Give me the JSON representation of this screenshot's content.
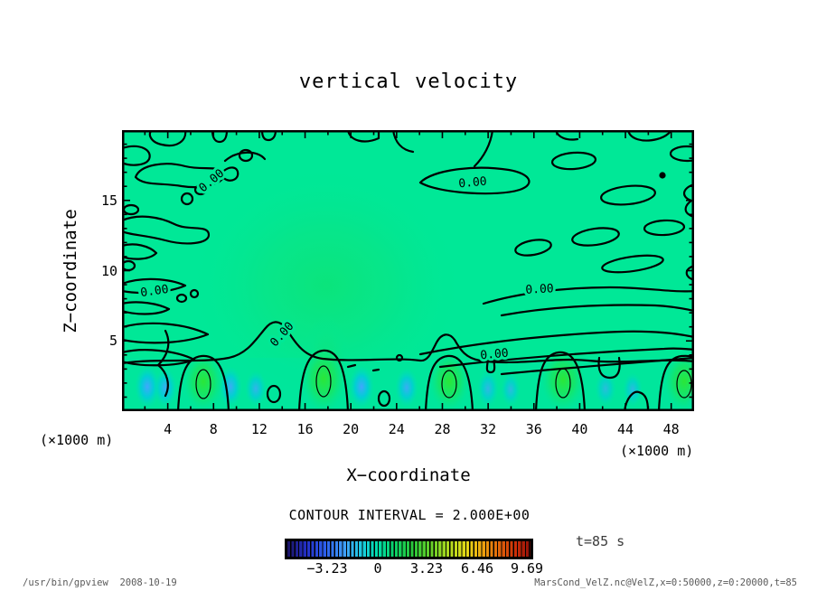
{
  "title": "vertical velocity",
  "axes": {
    "y_label": "Z−coordinate",
    "x_label": "X−coordinate",
    "y_ticks": [
      "15",
      "10",
      "5"
    ],
    "x_ticks": [
      "4",
      "8",
      "12",
      "16",
      "20",
      "24",
      "28",
      "32",
      "36",
      "40",
      "44",
      "48"
    ],
    "y_unit": "(×1000 m)",
    "x_unit": "(×1000 m)"
  },
  "contour_label": "0.00",
  "colorbar": {
    "caption": "CONTOUR INTERVAL = 2.000E+00",
    "tick_labels": [
      "−3.23",
      "0",
      "3.23",
      "6.46",
      "9.69"
    ]
  },
  "annotations": {
    "time": "t=85 s"
  },
  "footer": {
    "left": "/usr/bin/gpview  2008-10-19",
    "right": "MarsCond_VelZ.nc@VelZ,x=0:50000,z=0:20000,t=85"
  },
  "colors": {
    "field_background": "#00E897",
    "contour_line": "#000000",
    "updraft_core": "#2BE637",
    "downdraft_core": "#41A6FF"
  },
  "chart_data": {
    "type": "contour",
    "title": "vertical velocity",
    "xlabel": "X-coordinate",
    "ylabel": "Z-coordinate",
    "x_unit": "×1000 m",
    "y_unit": "×1000 m",
    "xlim": [
      0,
      50
    ],
    "ylim": [
      0,
      20
    ],
    "x_ticks": [
      4,
      8,
      12,
      16,
      20,
      24,
      28,
      32,
      36,
      40,
      44,
      48
    ],
    "y_ticks": [
      5,
      10,
      15
    ],
    "x_minor_step": 2,
    "y_minor_step": 1,
    "contour_interval": 2.0,
    "labeled_contour_value": 0.0,
    "colorbar_ticks": [
      -3.23,
      0,
      3.23,
      6.46,
      9.69
    ],
    "colorbar_range": [
      -6.0,
      10.3
    ],
    "time_label": "t=85 s",
    "field_summary": {
      "background_value": 0.0,
      "convective_layer_top_km": 3.5,
      "updraft_plume_x_km": [
        7,
        17.5,
        28.5,
        38.5,
        49
      ],
      "downdraft_x_km": [
        2.2,
        3.8,
        9.2,
        11.8,
        21,
        25,
        32,
        34,
        42.5,
        44.5
      ],
      "weak_updraft_aloft_center": {
        "x_km": 17.5,
        "z_km": 9
      },
      "max_label_value": 9.69,
      "min_label_value": -3.23
    }
  }
}
